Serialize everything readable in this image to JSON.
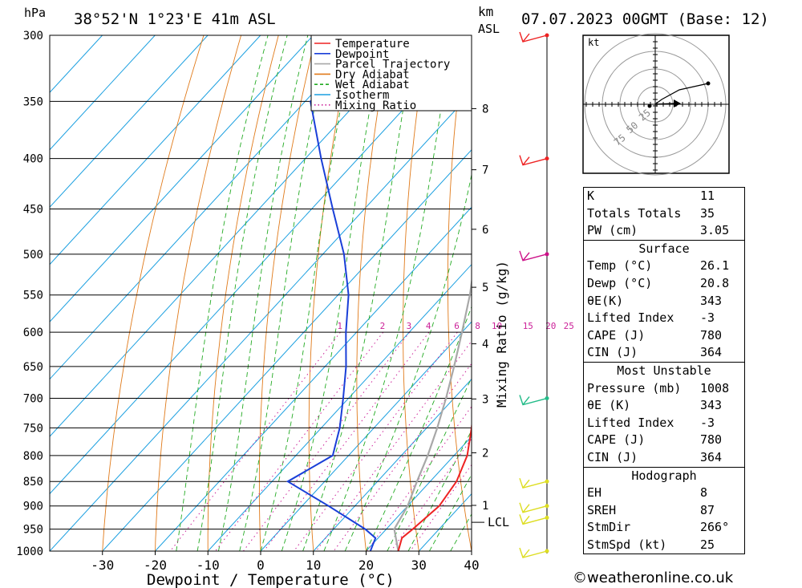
{
  "header": {
    "location": "38°52'N  1°23'E  41m  ASL",
    "datetime": "07.07.2023  00GMT  (Base: 12)",
    "pressure_unit": "hPa",
    "height_unit_top": "km",
    "height_unit_bottom": "ASL"
  },
  "chart_data": {
    "type": "line",
    "title": "Skew-T log-P diagram",
    "xlabel": "Dewpoint / Temperature (°C)",
    "ylabel": "hPa",
    "right_axis_label": "Mixing Ratio (g/kg)",
    "xlim": [
      -40,
      40
    ],
    "pressure_range": [
      300,
      1000
    ],
    "pressure_ticks": [
      300,
      350,
      400,
      450,
      500,
      550,
      600,
      650,
      700,
      750,
      800,
      850,
      900,
      950,
      1000
    ],
    "x_ticks": [
      -30,
      -20,
      -10,
      0,
      10,
      20,
      30,
      40
    ],
    "height_ticks_km": [
      1,
      2,
      3,
      4,
      5,
      6,
      7,
      8
    ],
    "lcl_label": "LCL",
    "mixing_ratio_labels": [
      "1",
      "2",
      "3",
      "4",
      "6",
      "8",
      "10",
      "15",
      "20",
      "25"
    ],
    "legend": [
      {
        "name": "Temperature",
        "color": "#ee2222",
        "style": "solid"
      },
      {
        "name": "Dewpoint",
        "color": "#1a3fd8",
        "style": "solid"
      },
      {
        "name": "Parcel Trajectory",
        "color": "#a8a8a8",
        "style": "solid"
      },
      {
        "name": "Dry Adiabat",
        "color": "#e07a1a",
        "style": "solid"
      },
      {
        "name": "Wet Adiabat",
        "color": "#22aa22",
        "style": "dashed"
      },
      {
        "name": "Isotherm",
        "color": "#1a9fe0",
        "style": "solid"
      },
      {
        "name": "Mixing Ratio",
        "color": "#cc2299",
        "style": "dotted"
      }
    ],
    "series": [
      {
        "name": "Temperature",
        "points": [
          [
            1000,
            26.1
          ],
          [
            970,
            24.5
          ],
          [
            950,
            25.0
          ],
          [
            900,
            26.0
          ],
          [
            850,
            25.0
          ],
          [
            800,
            22.5
          ],
          [
            750,
            18.5
          ],
          [
            700,
            14.0
          ],
          [
            650,
            9.0
          ],
          [
            600,
            4.0
          ],
          [
            550,
            -2.0
          ],
          [
            500,
            -7.5
          ],
          [
            450,
            -14.0
          ],
          [
            400,
            -21.0
          ],
          [
            350,
            -30.0
          ],
          [
            300,
            -40.0
          ]
        ]
      },
      {
        "name": "Dewpoint",
        "points": [
          [
            1000,
            20.8
          ],
          [
            970,
            19.5
          ],
          [
            950,
            16.0
          ],
          [
            900,
            5.0
          ],
          [
            850,
            -7.0
          ],
          [
            800,
            -3.0
          ],
          [
            750,
            -6.5
          ],
          [
            700,
            -11.0
          ],
          [
            650,
            -16.0
          ],
          [
            600,
            -22.0
          ],
          [
            550,
            -28.0
          ],
          [
            500,
            -36.0
          ],
          [
            450,
            -46.0
          ],
          [
            400,
            -57.0
          ],
          [
            350,
            -69.0
          ],
          [
            300,
            -67.0
          ]
        ]
      },
      {
        "name": "Parcel Trajectory",
        "points": [
          [
            1000,
            26.1
          ],
          [
            950,
            21.5
          ],
          [
            900,
            20.0
          ],
          [
            850,
            17.5
          ],
          [
            800,
            15.0
          ],
          [
            750,
            12.0
          ],
          [
            700,
            8.5
          ],
          [
            650,
            4.5
          ],
          [
            600,
            0.0
          ],
          [
            550,
            -5.0
          ],
          [
            500,
            -11.0
          ],
          [
            450,
            -18.0
          ],
          [
            400,
            -26.5
          ],
          [
            350,
            -37.0
          ]
        ]
      }
    ]
  },
  "hodograph": {
    "unit": "kt",
    "ring_labels": [
      "25",
      "50",
      "75"
    ]
  },
  "indices": {
    "general": [
      {
        "label": "K",
        "value": "11"
      },
      {
        "label": "Totals Totals",
        "value": "35"
      },
      {
        "label": "PW (cm)",
        "value": "3.05"
      }
    ],
    "surface_title": "Surface",
    "surface": [
      {
        "label": "Temp (°C)",
        "value": "26.1"
      },
      {
        "label": "Dewp (°C)",
        "value": "20.8"
      },
      {
        "label": "θE(K)",
        "value": "343"
      },
      {
        "label": "Lifted Index",
        "value": "-3"
      },
      {
        "label": "CAPE (J)",
        "value": "780"
      },
      {
        "label": "CIN (J)",
        "value": "364"
      }
    ],
    "unstable_title": "Most Unstable",
    "unstable": [
      {
        "label": "Pressure (mb)",
        "value": "1008"
      },
      {
        "label": "θE (K)",
        "value": "343"
      },
      {
        "label": "Lifted Index",
        "value": "-3"
      },
      {
        "label": "CAPE (J)",
        "value": "780"
      },
      {
        "label": "CIN (J)",
        "value": "364"
      }
    ],
    "hodograph_title": "Hodograph",
    "hodograph": [
      {
        "label": "EH",
        "value": "8"
      },
      {
        "label": "SREH",
        "value": "87"
      },
      {
        "label": "StmDir",
        "value": "266°"
      },
      {
        "label": "StmSpd (kt)",
        "value": "25"
      }
    ]
  },
  "footer": "©weatheronline.co.uk",
  "colors": {
    "temperature": "#ee2222",
    "dewpoint": "#1a3fd8",
    "parcel": "#a8a8a8",
    "dry_adiabat": "#e07a1a",
    "wet_adiabat": "#22aa22",
    "isotherm": "#1a9fe0",
    "mixing_ratio": "#cc2299",
    "wind_barb_upper": "#ee2222",
    "wind_barb_mid": "#cc1188",
    "wind_barb_low": "#22bb88",
    "wind_barb_surface": "#dddd22"
  }
}
